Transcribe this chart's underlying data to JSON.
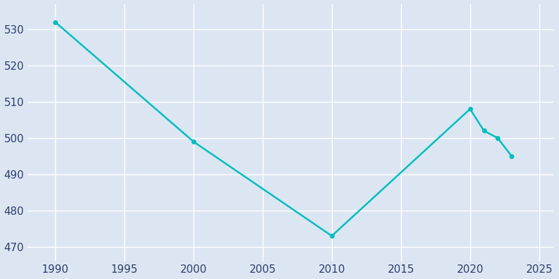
{
  "years": [
    1990,
    2000,
    2010,
    2020,
    2021,
    2022,
    2023
  ],
  "population": [
    532,
    499,
    473,
    508,
    502,
    500,
    495
  ],
  "line_color": "#00BEBE",
  "marker_color": "#00BEBE",
  "bg_color": "#DCE6F2",
  "plot_bg_color": "#DCE6F2",
  "tick_color": "#2E3F6E",
  "grid_color": "#FFFFFF",
  "xlim": [
    1988,
    2026
  ],
  "ylim": [
    466,
    537
  ],
  "xticks": [
    1990,
    1995,
    2000,
    2005,
    2010,
    2015,
    2020,
    2025
  ],
  "yticks": [
    470,
    480,
    490,
    500,
    510,
    520,
    530
  ],
  "linewidth": 1.8,
  "markersize": 4
}
